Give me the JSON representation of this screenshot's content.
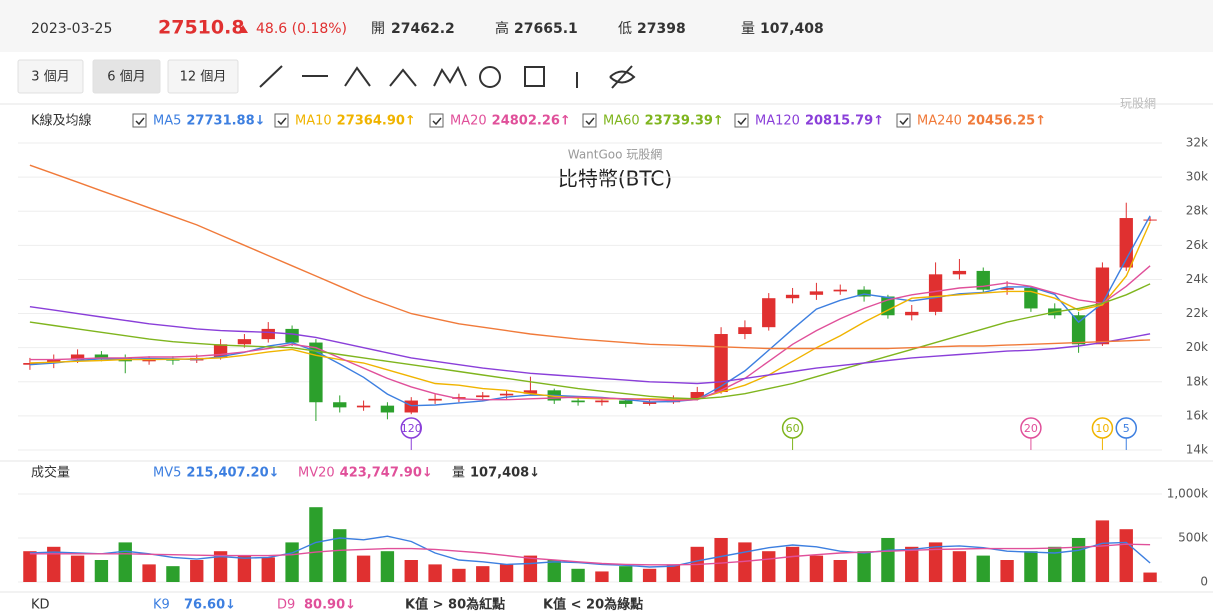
{
  "header": {
    "date": "2023-03-25",
    "price": "27510.8",
    "change": "48.6 (0.18%)",
    "open_label": "開",
    "open": "27462.2",
    "high_label": "高",
    "high": "27665.1",
    "low_label": "低",
    "low": "27398",
    "volume_label": "量",
    "volume": "107,408"
  },
  "range_buttons": [
    "3 個月",
    "6 個月",
    "12 個月"
  ],
  "selected_range": 1,
  "logo": "玩股網",
  "chart_data": [
    {
      "type": "candlestick",
      "legend_title": "K線及均線",
      "watermark": "WantGoo 玩股網",
      "title": "比特幣(BTC)",
      "up_color": "#e03030",
      "down_color": "#2ca02c",
      "grid": true,
      "open": [
        19000,
        19100,
        19300,
        19600,
        19400,
        19200,
        19300,
        19250,
        19400,
        20200,
        20500,
        21100,
        20300,
        16800,
        16500,
        16600,
        16200,
        16900,
        17000,
        17100,
        17200,
        17300,
        17500,
        16900,
        16800,
        16900,
        16700,
        16800,
        17000,
        17400,
        20800,
        21200,
        22900,
        23100,
        23300,
        23400,
        23000,
        21900,
        22100,
        24300,
        24500,
        23400,
        23500,
        22300,
        21900,
        20200,
        24700,
        27462.2
      ],
      "high": [
        19400,
        19600,
        19900,
        19800,
        19600,
        19500,
        19500,
        19600,
        20500,
        20800,
        21500,
        21300,
        20500,
        17200,
        16900,
        16800,
        17100,
        17300,
        17300,
        17400,
        17500,
        18300,
        17600,
        17100,
        17100,
        17000,
        17000,
        17200,
        17700,
        21200,
        21600,
        23200,
        23500,
        23800,
        23700,
        23600,
        23100,
        22500,
        25000,
        25200,
        24700,
        23900,
        23600,
        22600,
        22100,
        25000,
        28500,
        27665.1
      ],
      "low": [
        18700,
        18800,
        19100,
        19200,
        18500,
        19000,
        19000,
        19100,
        19300,
        20000,
        20300,
        20100,
        15700,
        16200,
        16300,
        15800,
        16100,
        16700,
        16800,
        16900,
        17000,
        17200,
        16700,
        16600,
        16600,
        16500,
        16600,
        16700,
        16900,
        17300,
        20500,
        21000,
        22600,
        22800,
        23100,
        22700,
        21700,
        21600,
        21900,
        24000,
        23200,
        23100,
        22100,
        21700,
        19700,
        20100,
        24500,
        27398
      ],
      "close": [
        19100,
        19300,
        19600,
        19400,
        19200,
        19300,
        19250,
        19400,
        20200,
        20500,
        21100,
        20300,
        16800,
        16500,
        16600,
        16200,
        16900,
        17000,
        17100,
        17200,
        17300,
        17500,
        16900,
        16800,
        16900,
        16700,
        16800,
        17000,
        17400,
        20800,
        21200,
        22900,
        23100,
        23300,
        23400,
        23000,
        21900,
        22100,
        24300,
        24500,
        23400,
        23500,
        22300,
        21900,
        20200,
        24700,
        27600,
        27510.8
      ],
      "series": [
        {
          "name": "MA5",
          "color": "#3d7fe0",
          "value_label": "27731.88↓",
          "values": [
            19000,
            19100,
            19250,
            19350,
            19320,
            19360,
            19350,
            19300,
            19470,
            19730,
            20090,
            20300,
            19780,
            19040,
            18260,
            17280,
            16600,
            16640,
            16760,
            16880,
            17100,
            17220,
            17200,
            17140,
            17080,
            16960,
            16820,
            16840,
            16960,
            17740,
            18640,
            19860,
            21080,
            22260,
            22780,
            23140,
            22940,
            22740,
            22940,
            23160,
            23240,
            23560,
            23560,
            23120,
            21500,
            22600,
            25200,
            27731.88
          ]
        },
        {
          "name": "MA10",
          "color": "#f0b400",
          "value_label": "27364.90↑",
          "values": [
            19100,
            19150,
            19200,
            19250,
            19300,
            19300,
            19320,
            19350,
            19400,
            19550,
            19750,
            19900,
            19550,
            19300,
            19100,
            18700,
            18300,
            17900,
            17800,
            17600,
            17500,
            17300,
            17150,
            17050,
            17000,
            17000,
            17000,
            16960,
            17000,
            17400,
            17800,
            18400,
            19200,
            20000,
            20700,
            21500,
            22200,
            22900,
            23000,
            23100,
            23200,
            23300,
            23300,
            22900,
            22200,
            22500,
            24200,
            27364.9
          ]
        },
        {
          "name": "MA20",
          "color": "#e0509a",
          "value_label": "24802.26↑",
          "values": [
            19300,
            19300,
            19350,
            19400,
            19400,
            19450,
            19450,
            19500,
            19600,
            19750,
            19950,
            20200,
            20000,
            19400,
            18800,
            18200,
            17700,
            17300,
            17000,
            16950,
            16950,
            17000,
            17050,
            17100,
            17050,
            17000,
            16950,
            16900,
            16950,
            17500,
            18200,
            19200,
            20200,
            21000,
            21700,
            22300,
            22800,
            23100,
            23300,
            23500,
            23600,
            23800,
            23600,
            23200,
            22800,
            22600,
            23600,
            24802.26
          ]
        },
        {
          "name": "MA60",
          "color": "#7fb51e",
          "value_label": "23739.39↑",
          "values": [
            21500,
            21300,
            21100,
            20900,
            20700,
            20500,
            20350,
            20250,
            20150,
            20100,
            20050,
            20000,
            19800,
            19600,
            19400,
            19200,
            19000,
            18800,
            18600,
            18400,
            18200,
            18000,
            17800,
            17600,
            17450,
            17300,
            17150,
            17050,
            17000,
            17100,
            17300,
            17600,
            17900,
            18300,
            18700,
            19100,
            19500,
            19900,
            20300,
            20700,
            21100,
            21500,
            21800,
            22100,
            22300,
            22600,
            23100,
            23739.39
          ]
        },
        {
          "name": "MA120",
          "color": "#8a3fd9",
          "value_label": "20815.79↑",
          "values": [
            22400,
            22200,
            22000,
            21800,
            21600,
            21400,
            21250,
            21100,
            21000,
            20950,
            20900,
            20800,
            20600,
            20300,
            20000,
            19700,
            19400,
            19200,
            19000,
            18800,
            18650,
            18500,
            18400,
            18300,
            18200,
            18100,
            18000,
            17950,
            17900,
            18000,
            18200,
            18400,
            18600,
            18800,
            18950,
            19100,
            19250,
            19400,
            19500,
            19600,
            19700,
            19800,
            19850,
            19950,
            20100,
            20300,
            20550,
            20815.79
          ]
        },
        {
          "name": "MA240",
          "color": "#f07a3a",
          "value_label": "20456.25↑",
          "values": [
            30700,
            30200,
            29700,
            29200,
            28700,
            28200,
            27700,
            27200,
            26600,
            26000,
            25400,
            24800,
            24200,
            23600,
            23000,
            22500,
            22000,
            21700,
            21400,
            21200,
            21000,
            20800,
            20650,
            20500,
            20400,
            20300,
            20200,
            20150,
            20100,
            20050,
            20000,
            19950,
            19950,
            19950,
            19950,
            19950,
            19950,
            20000,
            20050,
            20100,
            20100,
            20150,
            20200,
            20250,
            20300,
            20350,
            20400,
            20456.25
          ]
        }
      ],
      "markers": [
        {
          "label": "120",
          "series": 4,
          "index": 16
        },
        {
          "label": "60",
          "series": 3,
          "index": 32
        },
        {
          "label": "20",
          "series": 2,
          "index": 42
        },
        {
          "label": "10",
          "series": 1,
          "index": 45
        },
        {
          "label": "5",
          "series": 0,
          "index": 46
        }
      ],
      "ylim": [
        14000,
        32000
      ],
      "yticks": [
        {
          "value": 14000,
          "label": "14k"
        },
        {
          "value": 16000,
          "label": "16k"
        },
        {
          "value": 18000,
          "label": "18k"
        },
        {
          "value": 20000,
          "label": "20k"
        },
        {
          "value": 22000,
          "label": "22k"
        },
        {
          "value": 24000,
          "label": "24k"
        },
        {
          "value": 26000,
          "label": "26k"
        },
        {
          "value": 28000,
          "label": "28k"
        },
        {
          "value": 30000,
          "label": "30k"
        },
        {
          "value": 32000,
          "label": "32k"
        }
      ]
    },
    {
      "type": "bar",
      "legend_title": "成交量",
      "value_name": "量",
      "value_label": "107,408↓",
      "values": [
        350000,
        400000,
        300000,
        250000,
        450000,
        200000,
        180000,
        250000,
        350000,
        300000,
        280000,
        450000,
        850000,
        600000,
        300000,
        350000,
        250000,
        200000,
        150000,
        180000,
        200000,
        300000,
        250000,
        150000,
        120000,
        180000,
        150000,
        200000,
        400000,
        500000,
        450000,
        350000,
        400000,
        300000,
        250000,
        350000,
        500000,
        400000,
        450000,
        350000,
        300000,
        250000,
        350000,
        400000,
        500000,
        700000,
        600000,
        107408
      ],
      "series": [
        {
          "name": "MV5",
          "color": "#3d7fe0",
          "value_label": "215,407.20↓",
          "values": [
            330000,
            340000,
            330000,
            320000,
            350000,
            320000,
            280000,
            260000,
            290000,
            270000,
            280000,
            330000,
            450000,
            500000,
            480000,
            520000,
            460000,
            330000,
            250000,
            230000,
            200000,
            210000,
            230000,
            220000,
            200000,
            190000,
            170000,
            180000,
            240000,
            290000,
            340000,
            390000,
            420000,
            400000,
            350000,
            330000,
            360000,
            370000,
            400000,
            410000,
            390000,
            350000,
            340000,
            330000,
            360000,
            440000,
            450000,
            215407.2
          ]
        },
        {
          "name": "MV20",
          "color": "#e0509a",
          "value_label": "423,747.90↓",
          "values": [
            320000,
            320000,
            320000,
            320000,
            320000,
            315000,
            310000,
            305000,
            300000,
            300000,
            300000,
            310000,
            340000,
            360000,
            370000,
            380000,
            380000,
            370000,
            350000,
            330000,
            300000,
            270000,
            250000,
            230000,
            210000,
            200000,
            195000,
            195000,
            200000,
            215000,
            235000,
            260000,
            290000,
            310000,
            330000,
            340000,
            350000,
            360000,
            370000,
            375000,
            380000,
            380000,
            380000,
            385000,
            395000,
            410000,
            430000,
            423747.9
          ]
        }
      ],
      "ylim": [
        0,
        1000000
      ],
      "yticks": [
        0,
        {
          "value": 500000,
          "label": "500k"
        },
        {
          "value": 1000000,
          "label": "1,000k"
        }
      ]
    }
  ],
  "kd": {
    "title": "KD",
    "k_name": "K9",
    "k_value": "76.60↓",
    "d_name": "D9",
    "d_value": "80.90↓",
    "note_high": "K值 > 80為紅點",
    "note_low": "K值 < 20為綠點"
  }
}
